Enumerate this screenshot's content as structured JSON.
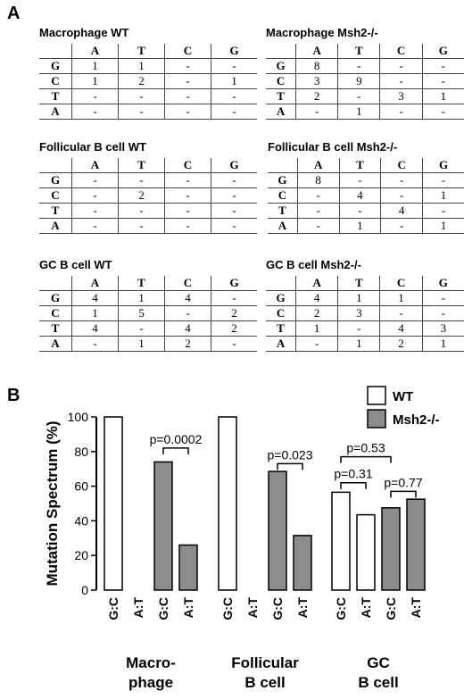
{
  "panel_a_label": "A",
  "panel_b_label": "B",
  "tables": [
    {
      "title": "Macrophage WT",
      "columns": [
        "A",
        "T",
        "C",
        "G"
      ],
      "rows": [
        {
          "label": "G",
          "cells": [
            "1",
            "1",
            "-",
            "-"
          ]
        },
        {
          "label": "C",
          "cells": [
            "1",
            "2",
            "-",
            "1"
          ]
        },
        {
          "label": "T",
          "cells": [
            "-",
            "-",
            "-",
            "-"
          ]
        },
        {
          "label": "A",
          "cells": [
            "-",
            "-",
            "-",
            "-"
          ]
        }
      ]
    },
    {
      "title": "Macrophage Msh2-/-",
      "columns": [
        "A",
        "T",
        "C",
        "G"
      ],
      "rows": [
        {
          "label": "G",
          "cells": [
            "8",
            "-",
            "-",
            "-"
          ]
        },
        {
          "label": "C",
          "cells": [
            "3",
            "9",
            "-",
            "-"
          ]
        },
        {
          "label": "T",
          "cells": [
            "2",
            "-",
            "3",
            "1"
          ]
        },
        {
          "label": "A",
          "cells": [
            "-",
            "1",
            "-",
            "-"
          ]
        }
      ]
    },
    {
      "title": "Follicular B cell WT",
      "columns": [
        "A",
        "T",
        "C",
        "G"
      ],
      "rows": [
        {
          "label": "G",
          "cells": [
            "-",
            "-",
            "-",
            "-"
          ]
        },
        {
          "label": "C",
          "cells": [
            "-",
            "2",
            "-",
            "-"
          ]
        },
        {
          "label": "T",
          "cells": [
            "-",
            "-",
            "-",
            "-"
          ]
        },
        {
          "label": "A",
          "cells": [
            "-",
            "-",
            "-",
            "-"
          ]
        }
      ]
    },
    {
      "title": "Follicular B cell Msh2-/-",
      "columns": [
        "A",
        "T",
        "C",
        "G"
      ],
      "rows": [
        {
          "label": "G",
          "cells": [
            "8",
            "-",
            "-",
            "-"
          ]
        },
        {
          "label": "C",
          "cells": [
            "-",
            "4",
            "-",
            "1"
          ]
        },
        {
          "label": "T",
          "cells": [
            "-",
            "-",
            "4",
            "-"
          ]
        },
        {
          "label": "A",
          "cells": [
            "-",
            "1",
            "-",
            "1"
          ]
        }
      ]
    },
    {
      "title": "GC B cell WT",
      "columns": [
        "A",
        "T",
        "C",
        "G"
      ],
      "rows": [
        {
          "label": "G",
          "cells": [
            "4",
            "1",
            "4",
            "-"
          ]
        },
        {
          "label": "C",
          "cells": [
            "1",
            "5",
            "-",
            "2"
          ]
        },
        {
          "label": "T",
          "cells": [
            "4",
            "-",
            "4",
            "2"
          ]
        },
        {
          "label": "A",
          "cells": [
            "-",
            "1",
            "2",
            "-"
          ]
        }
      ]
    },
    {
      "title": "GC B cell Msh2-/-",
      "columns": [
        "A",
        "T",
        "C",
        "G"
      ],
      "rows": [
        {
          "label": "G",
          "cells": [
            "4",
            "1",
            "1",
            "-"
          ]
        },
        {
          "label": "C",
          "cells": [
            "2",
            "3",
            "-",
            "-"
          ]
        },
        {
          "label": "T",
          "cells": [
            "1",
            "-",
            "4",
            "3"
          ]
        },
        {
          "label": "A",
          "cells": [
            "-",
            "1",
            "2",
            "1"
          ]
        }
      ]
    }
  ],
  "chart_data": {
    "type": "bar",
    "title": "",
    "ylabel": "Mutation Spectrum (%)",
    "xlabel": "",
    "ylim": [
      0,
      100
    ],
    "yticks": [
      0,
      20,
      40,
      60,
      80,
      100
    ],
    "legend": {
      "position": "top-right",
      "entries": [
        {
          "name": "WT",
          "color": "#ffffff"
        },
        {
          "name": "Msh2-/-",
          "color": "#8c8c8c"
        }
      ]
    },
    "colors": {
      "WT": "#ffffff",
      "Msh2-/-": "#8c8c8c",
      "stroke": "#000000"
    },
    "groups": [
      {
        "label_lines": [
          "Macro-",
          "phage"
        ],
        "bars": [
          {
            "category": "G:C",
            "series": "WT",
            "value": 100
          },
          {
            "category": "A:T",
            "series": "WT",
            "value": 0
          },
          {
            "category": "G:C",
            "series": "Msh2-/-",
            "value": 74
          },
          {
            "category": "A:T",
            "series": "Msh2-/-",
            "value": 26
          }
        ]
      },
      {
        "label_lines": [
          "Follicular",
          "B cell"
        ],
        "bars": [
          {
            "category": "G:C",
            "series": "WT",
            "value": 100
          },
          {
            "category": "A:T",
            "series": "WT",
            "value": 0
          },
          {
            "category": "G:C",
            "series": "Msh2-/-",
            "value": 68.5
          },
          {
            "category": "A:T",
            "series": "Msh2-/-",
            "value": 31.5
          }
        ]
      },
      {
        "label_lines": [
          "GC",
          "B cell"
        ],
        "bars": [
          {
            "category": "G:C",
            "series": "WT",
            "value": 56.5
          },
          {
            "category": "A:T",
            "series": "WT",
            "value": 43.5
          },
          {
            "category": "G:C",
            "series": "Msh2-/-",
            "value": 47.5
          },
          {
            "category": "A:T",
            "series": "Msh2-/-",
            "value": 52.5
          }
        ]
      }
    ],
    "annotations": [
      {
        "text": "p=0.0002",
        "group": 0,
        "from_bar": 2,
        "to_bar": 3
      },
      {
        "text": "p=0.023",
        "group": 1,
        "from_bar": 2,
        "to_bar": 3
      },
      {
        "text": "p=0.31",
        "group": 2,
        "from_bar": 0,
        "to_bar": 1
      },
      {
        "text": "p=0.77",
        "group": 2,
        "from_bar": 2,
        "to_bar": 3
      },
      {
        "text": "p=0.53",
        "group": 2,
        "from_bar": 0,
        "to_bar": 2
      }
    ]
  }
}
